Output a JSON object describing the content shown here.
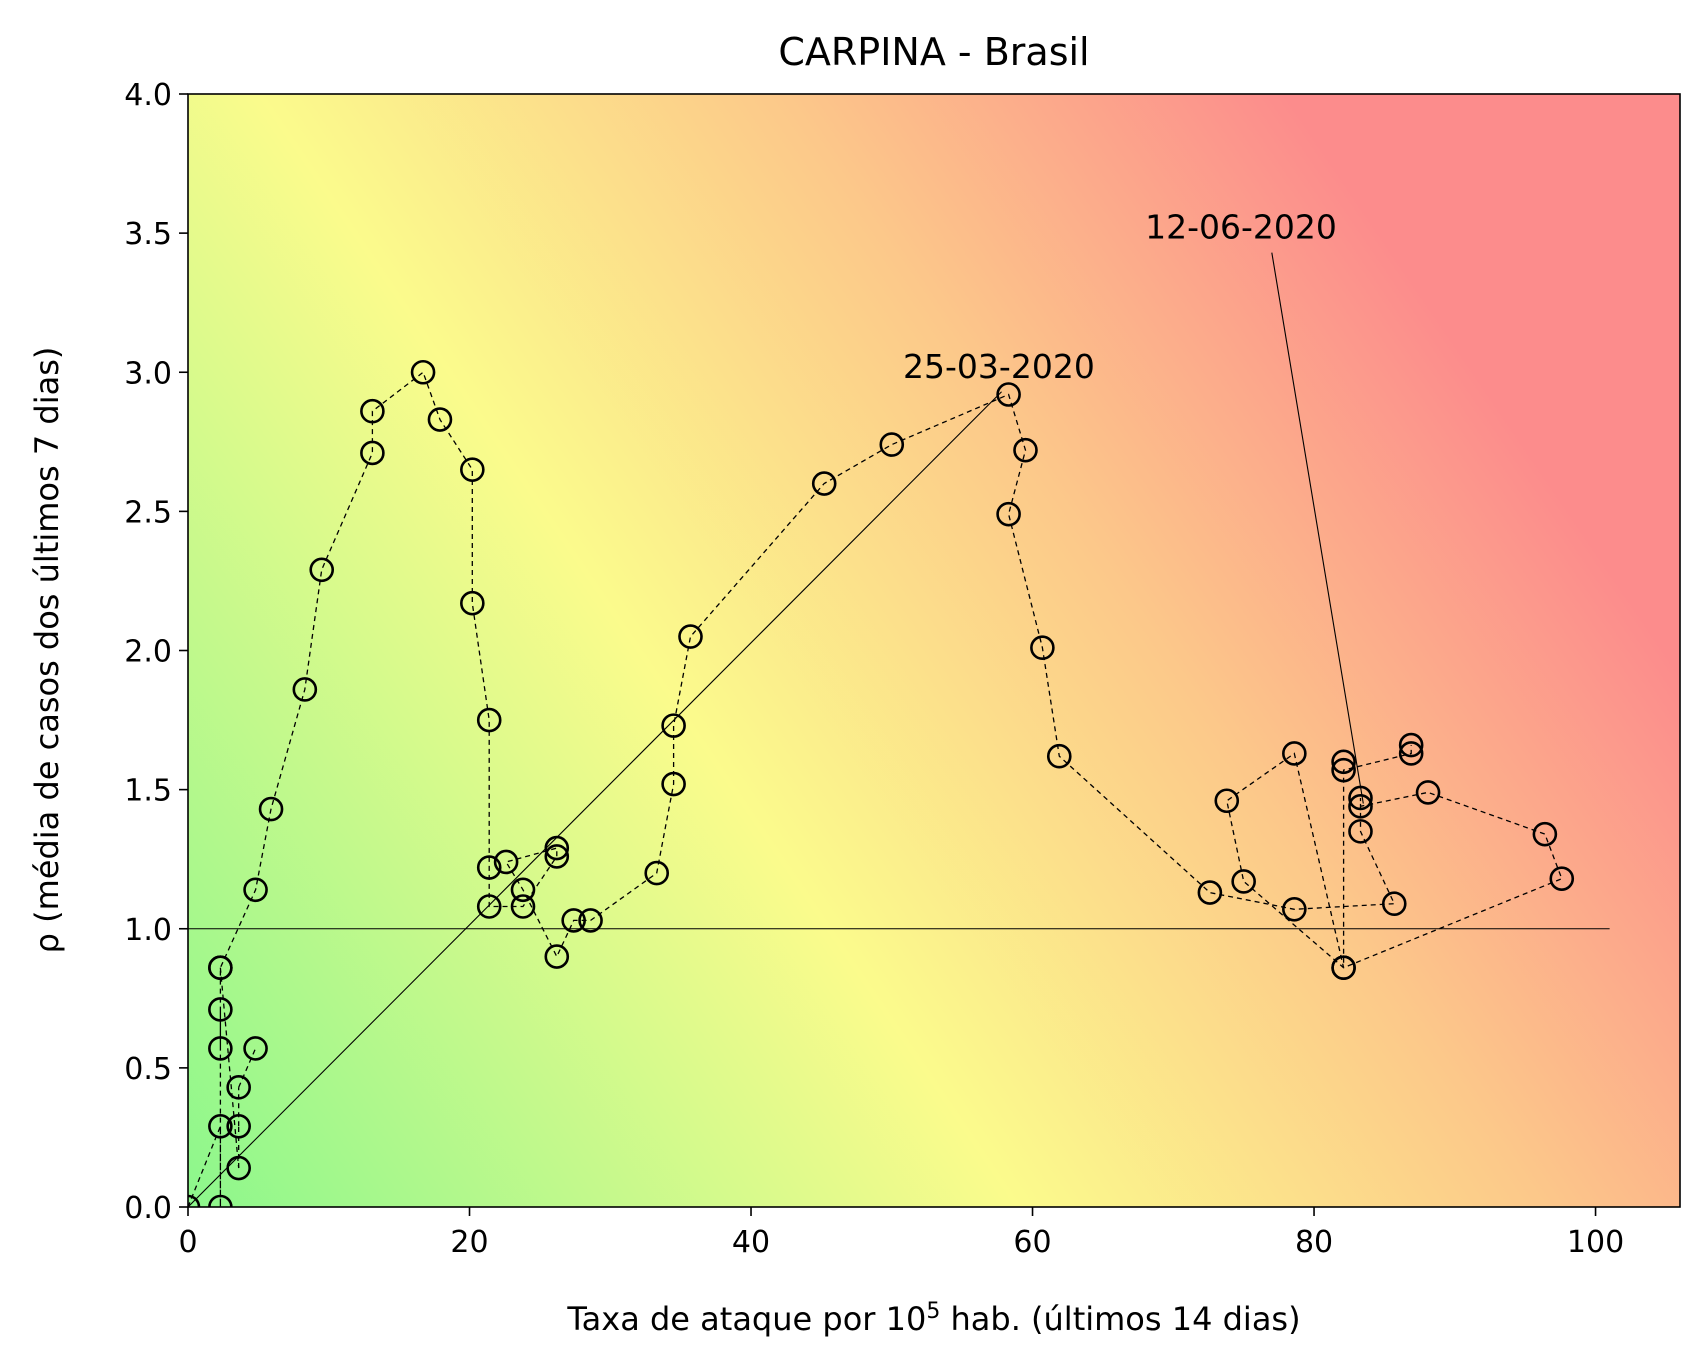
{
  "chart_data": {
    "type": "scatter",
    "title": "CARPINA - Brasil",
    "xlabel": "Taxa de ataque por 10",
    "xlabel_sup": "5",
    "xlabel_suffix": " hab. (últimos 14 dias)",
    "ylabel": "ρ (média de casos dos últimos 7 dias)",
    "xlim": [
      0,
      106
    ],
    "ylim": [
      0,
      4.0
    ],
    "x_ticks": [
      0,
      20,
      40,
      60,
      80,
      100
    ],
    "y_ticks": [
      0.0,
      0.5,
      1.0,
      1.5,
      2.0,
      2.5,
      3.0,
      3.5,
      4.0
    ],
    "x_tick_labels": [
      "0",
      "20",
      "40",
      "60",
      "80",
      "100"
    ],
    "y_tick_labels": [
      "0.0",
      "0.5",
      "1.0",
      "1.5",
      "2.0",
      "2.5",
      "3.0",
      "3.5",
      "4.0"
    ],
    "reference_line_y": 1.0,
    "background": "gradient green (low-left) → yellow → red (upper-right)",
    "colors": {
      "green": "#8cf78c",
      "yellow": "#fbfb8c",
      "orange": "#fcc88a",
      "red": "#fc8c8c"
    },
    "series": [
      {
        "x": [
          0.0,
          2.3,
          2.3,
          2.3,
          2.3,
          2.3,
          2.3,
          3.6,
          3.6,
          3.6,
          4.8,
          4.8,
          5.9,
          8.3,
          9.5,
          13.1,
          13.1,
          16.7,
          17.9,
          20.2,
          20.2,
          21.4,
          21.4,
          21.4,
          22.6,
          23.8,
          23.8,
          26.2,
          26.2,
          26.2,
          27.4,
          28.6,
          33.3,
          34.5,
          34.5,
          35.7,
          45.2,
          50.0,
          58.3,
          59.5,
          58.3,
          60.7,
          61.9,
          72.6,
          73.8,
          75.0,
          78.6,
          78.6,
          82.1,
          82.1,
          82.1,
          83.3,
          83.3,
          83.3,
          85.7,
          86.9,
          86.9,
          88.1,
          96.4,
          97.6,
          82.1
        ],
        "y": [
          0.0,
          0.0,
          0.29,
          0.57,
          0.71,
          0.86,
          0.86,
          0.14,
          0.29,
          0.43,
          0.57,
          1.14,
          1.43,
          1.86,
          2.29,
          2.71,
          2.86,
          3.0,
          2.83,
          2.65,
          2.17,
          1.75,
          1.22,
          1.08,
          1.24,
          1.14,
          1.08,
          1.29,
          1.26,
          0.9,
          1.03,
          1.03,
          1.2,
          1.52,
          1.73,
          2.05,
          2.6,
          2.74,
          2.92,
          2.72,
          2.49,
          2.01,
          1.62,
          1.13,
          1.46,
          1.17,
          1.07,
          1.63,
          1.6,
          1.57,
          0.86,
          1.47,
          1.44,
          1.35,
          1.09,
          1.63,
          1.66,
          1.49,
          1.34,
          1.18,
          0.86
        ]
      }
    ],
    "path_order": [
      0,
      2,
      1,
      2,
      4,
      3,
      5,
      11,
      12,
      13,
      14,
      15,
      16,
      17,
      18,
      19,
      20,
      21,
      22,
      23,
      26,
      28,
      27,
      24,
      25,
      29,
      30,
      31,
      32,
      33,
      34,
      35,
      36,
      37,
      38,
      39,
      40,
      41,
      42,
      43,
      46,
      54,
      53,
      51,
      52,
      57,
      58,
      59,
      60,
      45,
      44,
      47,
      50,
      49,
      55,
      56
    ],
    "extra_segments": [
      [
        9,
        10
      ],
      [
        6,
        7
      ],
      [
        7,
        8
      ],
      [
        8,
        9
      ]
    ],
    "annotations": [
      {
        "text": "25-03-2020",
        "x": 50.8,
        "y": 2.98,
        "target_x": 0.0,
        "target_y": 0.0,
        "arrow_from_x": 57.8,
        "arrow_from_y": 2.93
      },
      {
        "text": "12-06-2020",
        "x": 68.0,
        "y": 3.48,
        "target_x": 83.5,
        "target_y": 1.45,
        "arrow_from_x": 77.0,
        "arrow_from_y": 3.43
      }
    ]
  }
}
